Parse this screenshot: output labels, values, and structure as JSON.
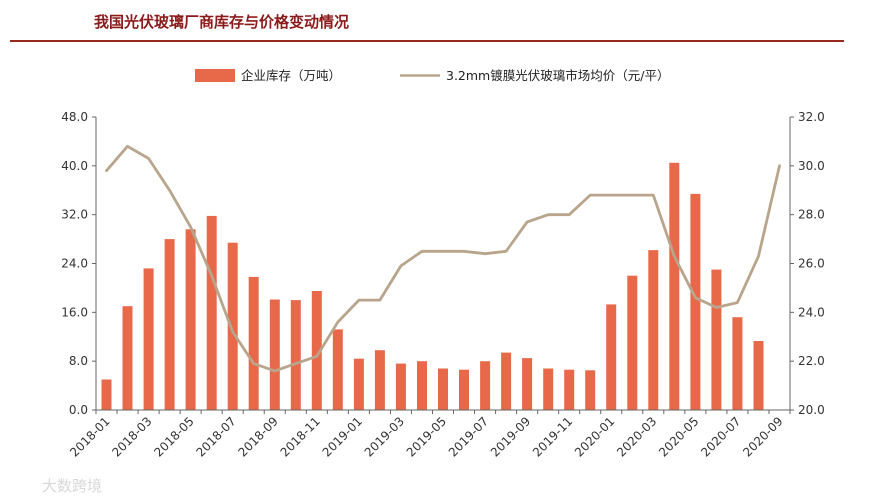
{
  "page": {
    "title": "我国光伏玻璃厂商库存与价格变动情况"
  },
  "watermark": "大数跨境",
  "colors": {
    "bars": "#E8694A",
    "line": "#B8A58C",
    "title": "#8B1A1A",
    "axis": "#666666"
  },
  "chart_data": {
    "type": "bar+line",
    "title": "我国光伏玻璃厂商库存与价格变动情况",
    "categories": [
      "2018-01",
      "2018-02",
      "2018-03",
      "2018-04",
      "2018-05",
      "2018-06",
      "2018-07",
      "2018-08",
      "2018-09",
      "2018-10",
      "2018-11",
      "2018-12",
      "2019-01",
      "2019-02",
      "2019-03",
      "2019-04",
      "2019-05",
      "2019-06",
      "2019-07",
      "2019-08",
      "2019-09",
      "2019-10",
      "2019-11",
      "2019-12",
      "2020-01",
      "2020-02",
      "2020-03",
      "2020-04",
      "2020-05",
      "2020-06",
      "2020-07",
      "2020-08",
      "2020-09"
    ],
    "tick_labels": [
      "2018-01",
      "2018-03",
      "2018-05",
      "2018-07",
      "2018-09",
      "2018-11",
      "2019-01",
      "2019-03",
      "2019-05",
      "2019-07",
      "2019-09",
      "2019-11",
      "2020-01",
      "2020-03",
      "2020-05",
      "2020-07",
      "2020-09"
    ],
    "series": [
      {
        "name": "企业库存（万吨）",
        "type": "bar",
        "axis": "left",
        "values": [
          5.0,
          17.0,
          23.2,
          28.0,
          29.6,
          31.8,
          27.4,
          21.8,
          18.1,
          18.0,
          19.5,
          13.2,
          8.4,
          9.8,
          7.6,
          8.0,
          6.8,
          6.6,
          8.0,
          9.4,
          8.5,
          6.8,
          6.6,
          6.5,
          17.3,
          22.0,
          26.2,
          40.5,
          35.4,
          23.0,
          15.2,
          11.3,
          null
        ]
      },
      {
        "name": "3.2mm镀膜光伏玻璃市场均价（元/平）",
        "type": "line",
        "axis": "right",
        "values": [
          29.8,
          30.8,
          30.3,
          29.0,
          27.5,
          25.5,
          23.2,
          21.9,
          21.6,
          21.9,
          22.2,
          23.6,
          24.5,
          24.5,
          25.9,
          26.5,
          26.5,
          26.5,
          26.4,
          26.5,
          27.7,
          28.0,
          28.0,
          28.8,
          28.8,
          28.8,
          28.8,
          26.3,
          24.6,
          24.2,
          24.4,
          26.3,
          30.0
        ]
      }
    ],
    "y_left": {
      "min": 0,
      "max": 48,
      "ticks": [
        "0.0",
        "8.0",
        "16.0",
        "24.0",
        "32.0",
        "40.0",
        "48.0"
      ]
    },
    "y_right": {
      "min": 20,
      "max": 32,
      "ticks": [
        "20.0",
        "22.0",
        "24.0",
        "26.0",
        "28.0",
        "30.0",
        "32.0"
      ]
    },
    "legend": {
      "position": "top",
      "bar_label": "企业库存（万吨）",
      "line_label": "3.2mm镀膜光伏玻璃市场均价（元/平）"
    }
  }
}
